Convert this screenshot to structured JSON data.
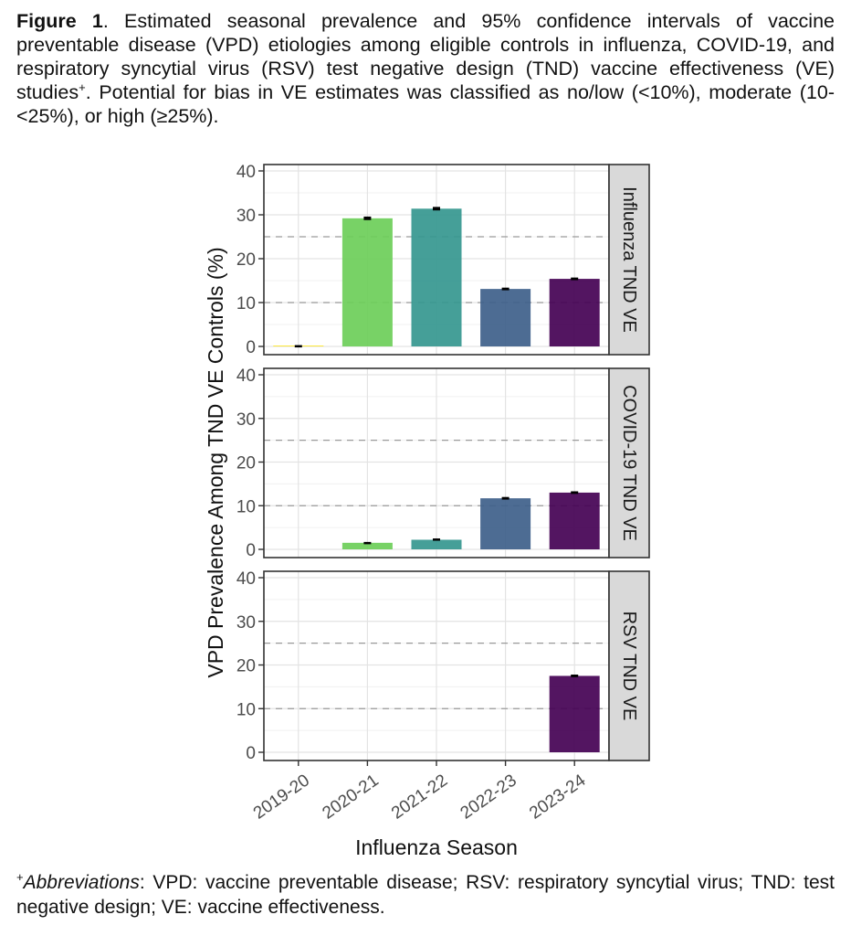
{
  "caption": {
    "label": "Figure 1",
    "text": ". Estimated seasonal prevalence and 95% confidence intervals of vaccine preventable disease (VPD) etiologies among eligible controls in influenza, COVID-19, and respiratory syncytial virus (RSV) test negative design (TND) vaccine effectiveness (VE) studies",
    "marker": "+",
    "text2": ". Potential for bias in VE estimates was classified as no/low (<10%), moderate (10-<25%), or high (≥25%)."
  },
  "footnote": {
    "marker": "+",
    "label": "Abbreviations",
    "text": ": VPD: vaccine preventable disease; RSV: respiratory syncytial virus; TND: test negative design; VE: vaccine effectiveness."
  },
  "chart_data": {
    "type": "bar",
    "xlabel": "Influenza Season",
    "ylabel": "VPD Prevalence Among TND VE Controls (%)",
    "categories": [
      "2019-20",
      "2020-21",
      "2021-22",
      "2022-23",
      "2023-24"
    ],
    "ylim": [
      0,
      40
    ],
    "yticks": [
      0,
      10,
      20,
      30,
      40
    ],
    "reference_lines": [
      10,
      25
    ],
    "grid": true,
    "colors": [
      "#FDE725",
      "#6CCE59",
      "#35978F",
      "#3E5F8A",
      "#440154"
    ],
    "panels": [
      {
        "strip_label": "Influenza TND VE",
        "values": [
          0.2,
          29.2,
          31.4,
          13.1,
          15.4
        ],
        "ci_lower": [
          0.1,
          28.8,
          31.0,
          12.8,
          15.1
        ],
        "ci_upper": [
          0.3,
          29.6,
          31.8,
          13.4,
          15.7
        ]
      },
      {
        "strip_label": "COVID-19 TND VE",
        "values": [
          null,
          1.5,
          2.2,
          11.7,
          13.0
        ],
        "ci_lower": [
          null,
          1.3,
          2.0,
          11.4,
          12.7
        ],
        "ci_upper": [
          null,
          1.7,
          2.5,
          12.0,
          13.3
        ]
      },
      {
        "strip_label": "RSV TND VE",
        "values": [
          null,
          null,
          null,
          null,
          17.5
        ],
        "ci_lower": [
          null,
          null,
          null,
          null,
          17.2
        ],
        "ci_upper": [
          null,
          null,
          null,
          null,
          17.8
        ]
      }
    ]
  }
}
